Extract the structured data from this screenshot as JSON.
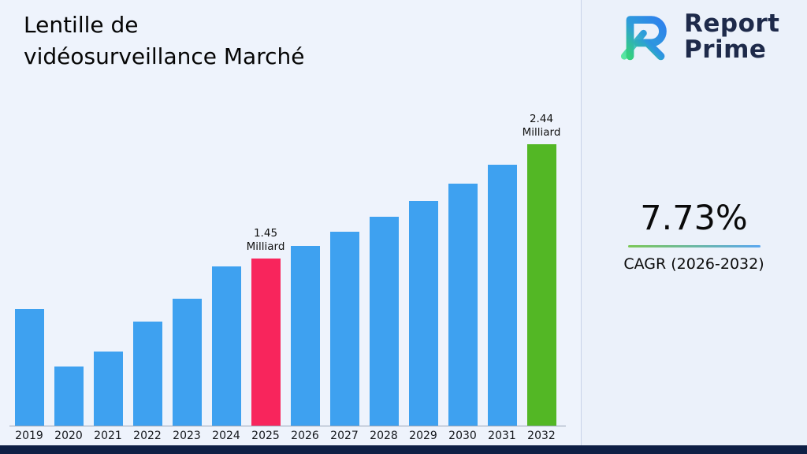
{
  "title": "Lentille de vidéosurveillance Marché",
  "logo": {
    "line1": "Report",
    "line2": "Prime"
  },
  "stats": {
    "value": "7.73%",
    "label": "CAGR (2026-2032)"
  },
  "colors": {
    "bar_default": "#3ea1f0",
    "bar_highlight_2025": "#f8255c",
    "bar_highlight_2032": "#53b725",
    "underline_from": "#7cc856",
    "underline_to": "#5aa7f0",
    "footer": "#0e1f45",
    "logo_text": "#1e2a4a"
  },
  "chart_data": {
    "type": "bar",
    "title": "Lentille de vidéosurveillance Marché",
    "xlabel": "",
    "ylabel": "",
    "unit": "Milliard",
    "categories": [
      "2019",
      "2020",
      "2021",
      "2022",
      "2023",
      "2024",
      "2025",
      "2026",
      "2027",
      "2028",
      "2029",
      "2030",
      "2031",
      "2032"
    ],
    "values": [
      1.01,
      0.51,
      0.64,
      0.9,
      1.1,
      1.38,
      1.45,
      1.56,
      1.68,
      1.81,
      1.95,
      2.1,
      2.26,
      2.44
    ],
    "ylim": [
      0,
      2.5
    ],
    "grid": false,
    "legend": false,
    "bar_colors": {
      "default": "#3ea1f0",
      "2025": "#f8255c",
      "2032": "#53b725"
    },
    "annotations": [
      {
        "category": "2025",
        "lines": [
          "1.45",
          "Milliard"
        ]
      },
      {
        "category": "2032",
        "lines": [
          "2.44",
          "Milliard"
        ]
      }
    ]
  }
}
